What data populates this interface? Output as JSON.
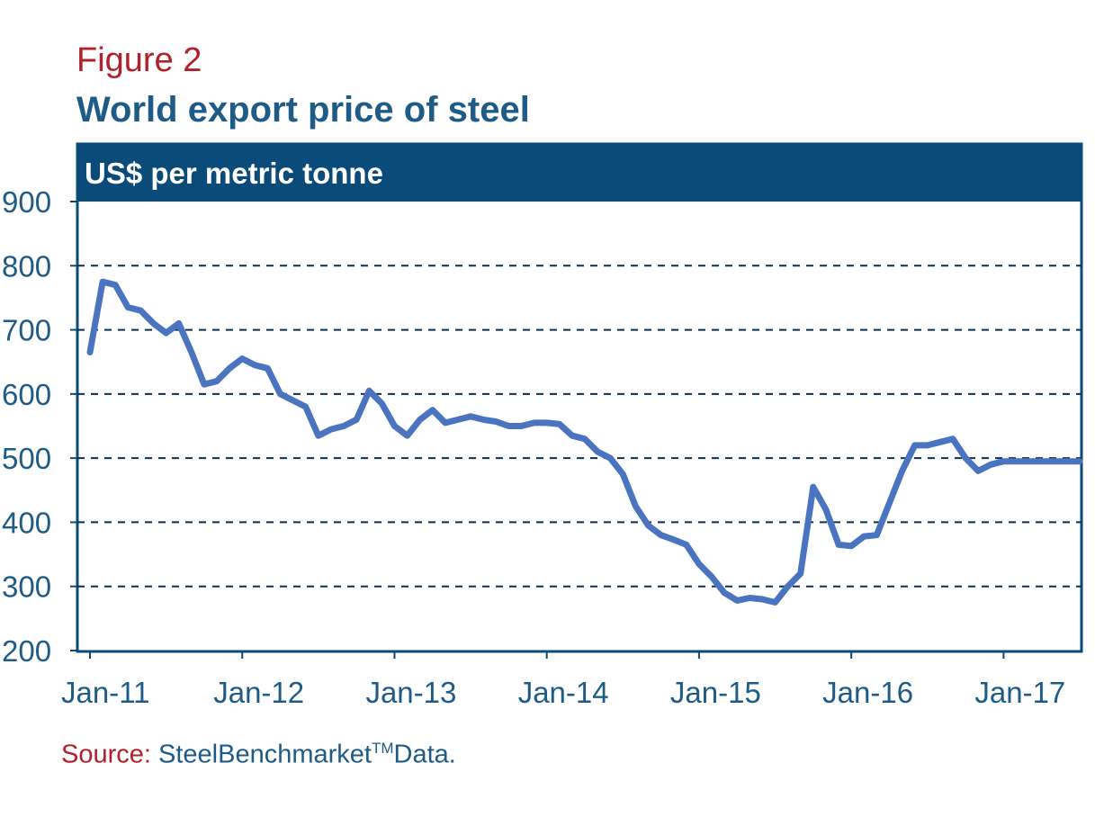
{
  "figure": {
    "label": "Figure 2",
    "title": "World export price of steel",
    "source_label": "Source:",
    "source_name": "SteelBenchmarket",
    "source_tm": "TM",
    "source_suffix": "Data."
  },
  "colors": {
    "line": "#4a74bf",
    "accent": "#0a4b7a",
    "label_red": "#b0212b",
    "axis_text": "#1e5b86"
  },
  "chart_data": {
    "type": "line",
    "title": "World export price of steel",
    "unit_banner": "US$ per metric tonne",
    "xlabel": "",
    "ylabel": "",
    "ylim": [
      200,
      900
    ],
    "yticks": [
      200,
      300,
      400,
      500,
      600,
      700,
      800,
      900
    ],
    "xtick_labels": [
      "Jan-11",
      "Jan-12",
      "Jan-13",
      "Jan-14",
      "Jan-15",
      "Jan-16",
      "Jan-17"
    ],
    "xlim_months": [
      0,
      78
    ],
    "grid": "horizontal dashed",
    "series": [
      {
        "name": "",
        "x": [
          0,
          1,
          2,
          3,
          4,
          5,
          6,
          7,
          8,
          9,
          10,
          11,
          12,
          13,
          14,
          15,
          16,
          17,
          18,
          19,
          20,
          21,
          22,
          23,
          24,
          25,
          26,
          27,
          28,
          29,
          30,
          31,
          32,
          33,
          34,
          35,
          36,
          37,
          38,
          39,
          40,
          41,
          42,
          43,
          44,
          45,
          46,
          47,
          48,
          49,
          50,
          51,
          52,
          53,
          54,
          55,
          56,
          57,
          58,
          59,
          60,
          61,
          62,
          63,
          64,
          65,
          66,
          67,
          68,
          69,
          70,
          71,
          72,
          73,
          74,
          75,
          76,
          77,
          78
        ],
        "values": [
          665,
          775,
          770,
          735,
          730,
          710,
          695,
          710,
          665,
          615,
          620,
          640,
          655,
          645,
          640,
          600,
          590,
          580,
          535,
          545,
          550,
          560,
          605,
          585,
          550,
          535,
          560,
          575,
          555,
          560,
          565,
          560,
          557,
          550,
          550,
          555,
          555,
          553,
          535,
          530,
          510,
          500,
          475,
          425,
          395,
          380,
          373,
          365,
          335,
          315,
          290,
          278,
          282,
          280,
          275,
          300,
          320,
          455,
          420,
          365,
          363,
          378,
          380,
          430,
          480,
          520,
          520,
          525,
          530,
          500,
          480,
          490,
          495,
          495,
          495,
          495,
          495,
          495,
          495
        ]
      }
    ]
  }
}
